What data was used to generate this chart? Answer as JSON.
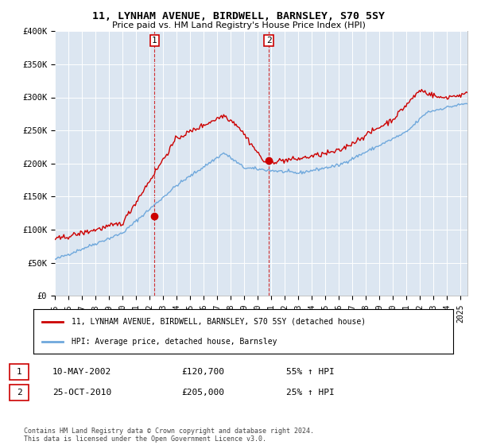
{
  "title": "11, LYNHAM AVENUE, BIRDWELL, BARNSLEY, S70 5SY",
  "subtitle": "Price paid vs. HM Land Registry's House Price Index (HPI)",
  "legend_line1": "11, LYNHAM AVENUE, BIRDWELL, BARNSLEY, S70 5SY (detached house)",
  "legend_line2": "HPI: Average price, detached house, Barnsley",
  "sale1_label": "1",
  "sale1_date": "10-MAY-2002",
  "sale1_price": "£120,700",
  "sale1_hpi": "55% ↑ HPI",
  "sale1_x": 2002.36,
  "sale1_y": 120700,
  "sale2_label": "2",
  "sale2_date": "25-OCT-2010",
  "sale2_price": "£205,000",
  "sale2_hpi": "25% ↑ HPI",
  "sale2_x": 2010.81,
  "sale2_y": 205000,
  "hpi_color": "#6fa8dc",
  "price_color": "#cc0000",
  "marker_color": "#cc0000",
  "vline_color": "#cc0000",
  "bg_plot": "#dce6f1",
  "footer": "Contains HM Land Registry data © Crown copyright and database right 2024.\nThis data is licensed under the Open Government Licence v3.0.",
  "ylim": [
    0,
    400000
  ],
  "xlim_start": 1995,
  "xlim_end": 2025.5
}
